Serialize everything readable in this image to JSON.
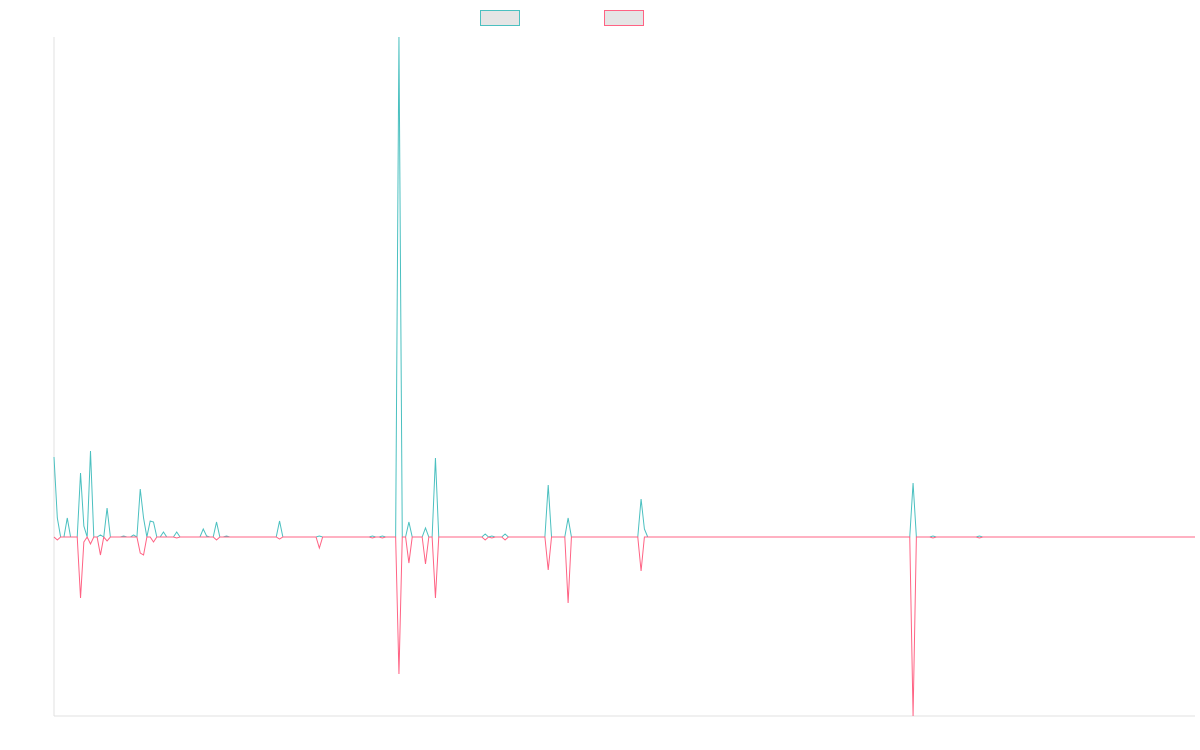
{
  "chart_data": {
    "type": "line",
    "title": "",
    "xlabel": "",
    "ylabel": "",
    "n_points": 345,
    "ylim": [
      -179,
      500
    ],
    "grid": false,
    "legend_position": "top-center",
    "default_value": 0,
    "series": [
      {
        "name": "",
        "color": "#4bc0c0",
        "nonzero_points": [
          [
            0,
            80
          ],
          [
            1,
            19
          ],
          [
            4,
            19
          ],
          [
            8,
            64
          ],
          [
            9,
            11
          ],
          [
            11,
            86
          ],
          [
            14,
            2
          ],
          [
            16,
            29
          ],
          [
            21,
            1
          ],
          [
            24,
            2
          ],
          [
            26,
            48
          ],
          [
            27,
            19
          ],
          [
            29,
            16
          ],
          [
            30,
            15
          ],
          [
            33,
            5
          ],
          [
            37,
            5
          ],
          [
            45,
            8
          ],
          [
            46,
            1
          ],
          [
            49,
            15
          ],
          [
            52,
            1
          ],
          [
            68,
            16
          ],
          [
            80,
            1
          ],
          [
            96,
            1
          ],
          [
            99,
            1
          ],
          [
            104,
            500
          ],
          [
            107,
            15
          ],
          [
            112,
            9
          ],
          [
            115,
            79
          ],
          [
            130,
            3
          ],
          [
            132,
            1
          ],
          [
            136,
            3
          ],
          [
            149,
            52
          ],
          [
            155,
            19
          ],
          [
            177,
            38
          ],
          [
            178,
            8
          ],
          [
            259,
            54
          ],
          [
            265,
            1
          ],
          [
            279,
            1
          ]
        ]
      },
      {
        "name": "",
        "color": "#ff6384",
        "nonzero_points": [
          [
            1,
            -3
          ],
          [
            8,
            -61
          ],
          [
            9,
            -5
          ],
          [
            11,
            -7
          ],
          [
            14,
            -18
          ],
          [
            16,
            -4
          ],
          [
            26,
            -16
          ],
          [
            27,
            -18
          ],
          [
            30,
            -5
          ],
          [
            37,
            -1
          ],
          [
            49,
            -3
          ],
          [
            68,
            -2
          ],
          [
            80,
            -11
          ],
          [
            96,
            -1
          ],
          [
            99,
            -1
          ],
          [
            104,
            -137
          ],
          [
            107,
            -26
          ],
          [
            112,
            -27
          ],
          [
            115,
            -61
          ],
          [
            130,
            -3
          ],
          [
            132,
            -1
          ],
          [
            136,
            -3
          ],
          [
            149,
            -33
          ],
          [
            155,
            -66
          ],
          [
            177,
            -34
          ],
          [
            259,
            -179
          ],
          [
            265,
            -1
          ],
          [
            279,
            -1
          ]
        ]
      }
    ]
  }
}
